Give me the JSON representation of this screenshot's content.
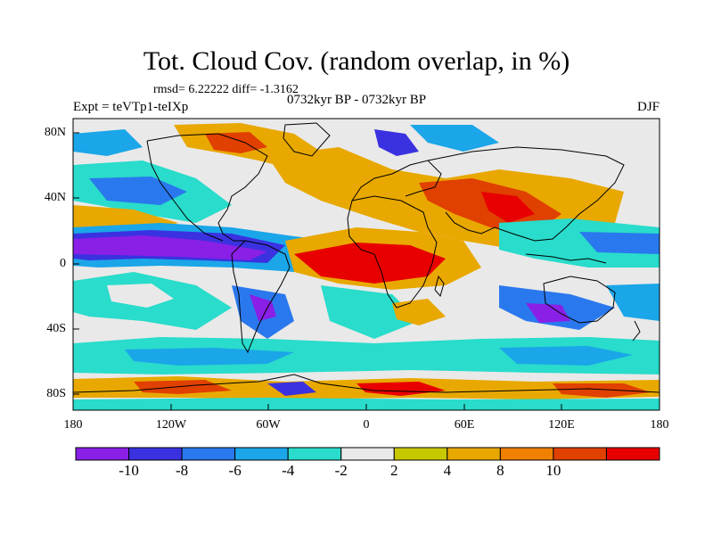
{
  "title": "Tot. Cloud Cov. (random overlap, in %)",
  "stats_line": "rmsd= 6.22222 diff= -1.3162",
  "experiment": "Expt = teVTp1-teIXp",
  "period": "0732kyr BP - 0732kyr BP",
  "season": "DJF",
  "lat_labels": [
    "80N",
    "40N",
    "0",
    "40S",
    "80S"
  ],
  "lon_labels": [
    "180",
    "120W",
    "60W",
    "0",
    "60E",
    "120E",
    "180"
  ],
  "colorbar": {
    "labels": [
      "-10",
      "-8",
      "-6",
      "-4",
      "-2",
      "2",
      "4",
      "8",
      "10"
    ],
    "colors": [
      "#8a1fe6",
      "#3a32e0",
      "#2a78ee",
      "#1aa6e8",
      "#29dccb",
      "#e9e9e9",
      "#c8c800",
      "#e8a800",
      "#f08000",
      "#e04000",
      "#e80000"
    ]
  },
  "map_colors": {
    "background": "#e9e9e9",
    "coastline": "#000000"
  }
}
